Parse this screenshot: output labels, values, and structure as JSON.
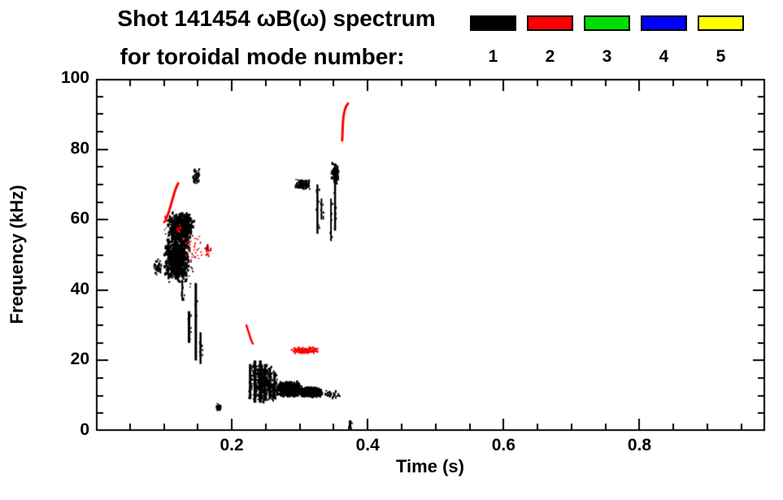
{
  "chart_data": {
    "type": "scatter",
    "title": "Shot 141454 ωB(ω) spectrum",
    "subtitle": "for toroidal mode number:",
    "xlabel": "Time (s)",
    "ylabel": "Frequency (kHz)",
    "xlim": [
      0,
      0.985
    ],
    "ylim": [
      0,
      100
    ],
    "xticks": {
      "major": [
        0.2,
        0.4,
        0.6,
        0.8
      ],
      "labels": [
        "0.2",
        "0.4",
        "0.6",
        "0.8"
      ],
      "minor_step": 0.05
    },
    "yticks": {
      "major": [
        0,
        20,
        40,
        60,
        80,
        100
      ],
      "labels": [
        "0",
        "20",
        "40",
        "60",
        "80",
        "100"
      ],
      "minor_step": 5
    },
    "grid": false,
    "legend": {
      "position": "top-right",
      "entries": [
        {
          "label": "1",
          "color": "#000000"
        },
        {
          "label": "2",
          "color": "#ff0000"
        },
        {
          "label": "3",
          "color": "#00dd00"
        },
        {
          "label": "4",
          "color": "#0000ff"
        },
        {
          "label": "5",
          "color": "#ffff00"
        }
      ]
    },
    "series": [
      {
        "mode": 1,
        "color": "#000000",
        "features": [
          {
            "kind": "blob",
            "t": [
              0.084,
              0.097
            ],
            "f": [
              44,
              49
            ],
            "n": 45,
            "s": 2
          },
          {
            "kind": "blob",
            "t": [
              0.1,
              0.138
            ],
            "f": [
              42,
              56
            ],
            "n": 700,
            "s": 2.5
          },
          {
            "kind": "blob",
            "t": [
              0.105,
              0.145
            ],
            "f": [
              54,
              62
            ],
            "n": 500,
            "s": 2.5
          },
          {
            "kind": "blob",
            "t": [
              0.097,
              0.15
            ],
            "f": [
              40,
              63
            ],
            "n": 160,
            "s": 1.5
          },
          {
            "kind": "vstreak",
            "t": 0.127,
            "f": [
              37,
              43
            ],
            "w": 2
          },
          {
            "kind": "vstreak",
            "t": 0.137,
            "f": [
              25,
              34
            ],
            "w": 3
          },
          {
            "kind": "vstreak",
            "t": 0.147,
            "f": [
              20,
              42
            ],
            "w": 3
          },
          {
            "kind": "vstreak",
            "t": 0.154,
            "f": [
              19,
              28
            ],
            "w": 2.5
          },
          {
            "kind": "blob",
            "t": [
              0.142,
              0.153
            ],
            "f": [
              70,
              74.5
            ],
            "n": 60,
            "s": 2
          },
          {
            "kind": "blob",
            "t": [
              0.16,
              0.168
            ],
            "f": [
              50,
              53
            ],
            "n": 8,
            "s": 2
          },
          {
            "kind": "blob",
            "t": [
              0.176,
              0.186
            ],
            "f": [
              5.5,
              8
            ],
            "n": 25,
            "s": 2
          },
          {
            "kind": "vstreak",
            "t": 0.227,
            "f": [
              9,
              19
            ],
            "w": 3
          },
          {
            "kind": "vstreak",
            "t": 0.234,
            "f": [
              8,
              20
            ],
            "w": 3.5
          },
          {
            "kind": "vstreak",
            "t": 0.242,
            "f": [
              8,
              20
            ],
            "w": 3.5
          },
          {
            "kind": "vstreak",
            "t": 0.249,
            "f": [
              8.5,
              19
            ],
            "w": 3
          },
          {
            "kind": "vstreak",
            "t": 0.256,
            "f": [
              9,
              18
            ],
            "w": 3
          },
          {
            "kind": "vstreak",
            "t": 0.263,
            "f": [
              9,
              16.5
            ],
            "w": 3
          },
          {
            "kind": "blob",
            "t": [
              0.225,
              0.268
            ],
            "f": [
              8,
              19
            ],
            "n": 350,
            "s": 2
          },
          {
            "kind": "blob",
            "t": [
              0.265,
              0.305
            ],
            "f": [
              9.5,
              14
            ],
            "n": 450,
            "s": 2.5
          },
          {
            "kind": "blob",
            "t": [
              0.3,
              0.335
            ],
            "f": [
              9.5,
              12.5
            ],
            "n": 350,
            "s": 2.5
          },
          {
            "kind": "blob",
            "t": [
              0.335,
              0.362
            ],
            "f": [
              9,
              11.5
            ],
            "n": 35,
            "s": 2
          },
          {
            "kind": "blob",
            "t": [
              0.293,
              0.316
            ],
            "f": [
              68.5,
              71.5
            ],
            "n": 120,
            "s": 2
          },
          {
            "kind": "vstreak",
            "t": 0.326,
            "f": [
              56,
              70
            ],
            "w": 2.5
          },
          {
            "kind": "vstreak",
            "t": 0.332,
            "f": [
              60,
              66
            ],
            "w": 2
          },
          {
            "kind": "vstreak",
            "t": 0.346,
            "f": [
              54,
              66
            ],
            "w": 2
          },
          {
            "kind": "vstreak",
            "t": 0.352,
            "f": [
              57,
              76
            ],
            "w": 2.5
          },
          {
            "kind": "blob",
            "t": [
              0.346,
              0.358
            ],
            "f": [
              70,
              76
            ],
            "n": 80,
            "s": 2.5
          },
          {
            "kind": "vstreak",
            "t": 0.374,
            "f": [
              0.8,
              3
            ],
            "w": 3
          }
        ]
      },
      {
        "mode": 2,
        "color": "#ff0000",
        "features": [
          {
            "kind": "polyline",
            "pts": [
              [
                0.1035,
                60.5
              ],
              [
                0.107,
                62
              ],
              [
                0.11,
                64
              ],
              [
                0.113,
                66
              ],
              [
                0.116,
                68
              ],
              [
                0.119,
                69.5
              ],
              [
                0.121,
                70.3
              ]
            ],
            "lw": 3
          },
          {
            "kind": "blob",
            "t": [
              0.1,
              0.104
            ],
            "f": [
              59,
              61
            ],
            "n": 10,
            "s": 2
          },
          {
            "kind": "blob",
            "t": [
              0.118,
              0.126
            ],
            "f": [
              56,
              59
            ],
            "n": 10,
            "s": 1.8
          },
          {
            "kind": "blob",
            "t": [
              0.128,
              0.158
            ],
            "f": [
              47,
              57
            ],
            "n": 30,
            "s": 1.8
          },
          {
            "kind": "blob",
            "t": [
              0.16,
              0.17
            ],
            "f": [
              49,
              53
            ],
            "n": 15,
            "s": 2
          },
          {
            "kind": "polyline",
            "pts": [
              [
                0.2215,
                30
              ],
              [
                0.224,
                28.5
              ],
              [
                0.2265,
                27
              ],
              [
                0.229,
                25.5
              ],
              [
                0.231,
                24.8
              ]
            ],
            "lw": 2.5
          },
          {
            "kind": "blob",
            "t": [
              0.2855,
              0.329
            ],
            "f": [
              21.8,
              23.8
            ],
            "n": 150,
            "s": 2
          },
          {
            "kind": "polyline",
            "pts": [
              [
                0.3625,
                82.5
              ],
              [
                0.363,
                85
              ],
              [
                0.3635,
                87.5
              ],
              [
                0.3645,
                89.5
              ],
              [
                0.366,
                91
              ],
              [
                0.3685,
                92.3
              ],
              [
                0.371,
                93
              ]
            ],
            "lw": 3
          }
        ]
      },
      {
        "mode": 3,
        "color": "#00dd00",
        "features": []
      },
      {
        "mode": 4,
        "color": "#0000ff",
        "features": []
      },
      {
        "mode": 5,
        "color": "#ffff00",
        "features": []
      }
    ]
  }
}
